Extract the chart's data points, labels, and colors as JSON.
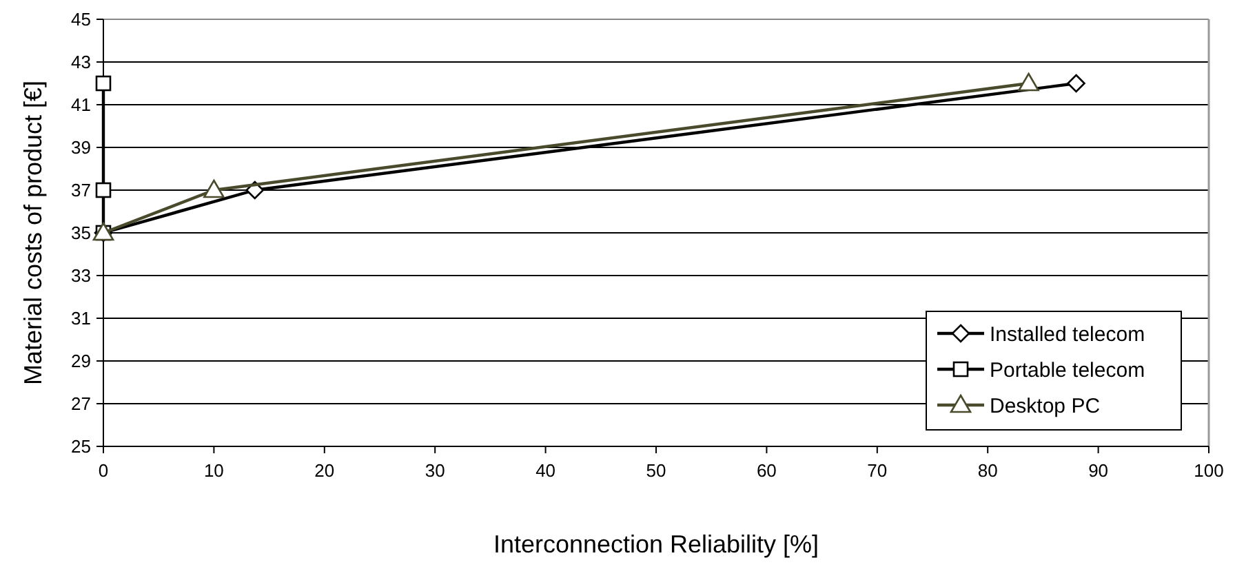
{
  "chart_data": {
    "type": "line",
    "xlabel": "Interconnection Reliability [%]",
    "ylabel": "Material costs of product [€]",
    "xlim": [
      0,
      100
    ],
    "xticks": [
      0,
      10,
      20,
      30,
      40,
      50,
      60,
      70,
      80,
      90,
      100
    ],
    "ylim": [
      25,
      45
    ],
    "yticks": [
      25,
      27,
      29,
      31,
      33,
      35,
      37,
      39,
      41,
      43,
      45
    ],
    "grid": "y",
    "legend": "bottom right",
    "series": [
      {
        "name": "Installed telecom",
        "color": "#000000",
        "marker": "diamond",
        "x": [
          0,
          13.7,
          88
        ],
        "values": [
          35,
          37,
          42
        ]
      },
      {
        "name": "Portable telecom",
        "color": "#000000",
        "marker": "square",
        "x": [
          0,
          0,
          0
        ],
        "values": [
          35,
          37,
          42
        ]
      },
      {
        "name": "Desktop PC",
        "color": "#4a4a2c",
        "marker": "triangle",
        "x": [
          0,
          10,
          83.7
        ],
        "values": [
          35,
          37,
          42
        ]
      }
    ]
  }
}
